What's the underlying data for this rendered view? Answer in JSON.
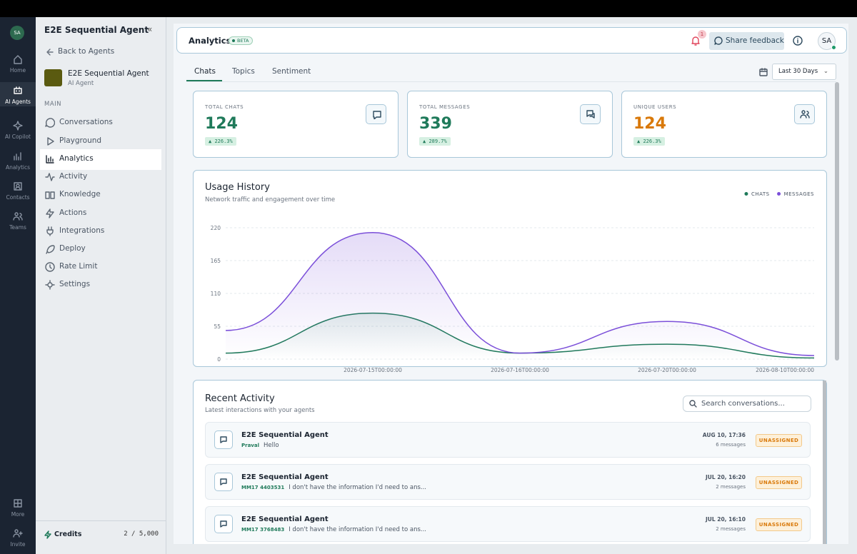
{
  "rail": {
    "avatar": "SA",
    "items": [
      "Home",
      "AI Agents",
      "AI Copilot",
      "Analytics",
      "Contacts",
      "Teams"
    ],
    "bottom": [
      "More",
      "Invite"
    ]
  },
  "sidebar": {
    "title": "E2E Sequential Agent",
    "back": "Back to Agents",
    "agent_name": "E2E Sequential Agent",
    "agent_type": "AI Agent",
    "section": "MAIN",
    "items": [
      "Conversations",
      "Playground",
      "Analytics",
      "Activity",
      "Knowledge",
      "Actions",
      "Integrations",
      "Deploy",
      "Rate Limit",
      "Settings"
    ],
    "credits_label": "Credits",
    "credits_value": "2 / 5,000"
  },
  "header": {
    "title": "Analytics",
    "badge": "BETA",
    "notifications": 1,
    "feedback": "Share feedback",
    "avatar": "SA"
  },
  "tabs": [
    "Chats",
    "Topics",
    "Sentiment"
  ],
  "range": "Last 30 Days",
  "stats": [
    {
      "label": "TOTAL CHATS",
      "value": 124,
      "change": "226.3%"
    },
    {
      "label": "TOTAL MESSAGES",
      "value": 339,
      "change": "289.7%"
    },
    {
      "label": "UNIQUE USERS",
      "value": 124,
      "change": "226.3%"
    }
  ],
  "chart_data": {
    "type": "line",
    "title": "Usage History",
    "subtitle": "Network traffic and engagement over time",
    "categories": [
      null,
      "2026-07-15T00:00:00",
      "2026-07-16T00:00:00",
      "2026-07-20T00:00:00",
      "2026-08-10T00:00:00"
    ],
    "series": [
      {
        "name": "CHATS",
        "color": "#1f7a5a",
        "values": [
          10,
          77,
          10,
          25,
          2
        ]
      },
      {
        "name": "MESSAGES",
        "color": "#7b4fd9",
        "values": [
          48,
          212,
          10,
          63,
          6
        ]
      }
    ],
    "ylim": [
      0,
      220
    ],
    "yticks": [
      0,
      55,
      110,
      165,
      220
    ],
    "grid": true,
    "legend": "top-right"
  },
  "activity": {
    "title": "Recent Activity",
    "subtitle": "Latest interactions with your agents",
    "search": "Search conversations...",
    "rows": [
      {
        "agent": "E2E Sequential Agent",
        "user": "Praval",
        "message": "Hello",
        "time": "AUG 10, 17:36",
        "count": "6 messages",
        "status": "UNASSIGNED"
      },
      {
        "agent": "E2E Sequential Agent",
        "user": "MM17 4403531",
        "message": "I don't have the information I'd need to ans...",
        "time": "JUL 20, 16:20",
        "count": "2 messages",
        "status": "UNASSIGNED"
      },
      {
        "agent": "E2E Sequential Agent",
        "user": "MM17 3768483",
        "message": "I don't have the information I'd need to ans...",
        "time": "JUL 20, 16:10",
        "count": "2 messages",
        "status": "UNASSIGNED"
      }
    ]
  }
}
